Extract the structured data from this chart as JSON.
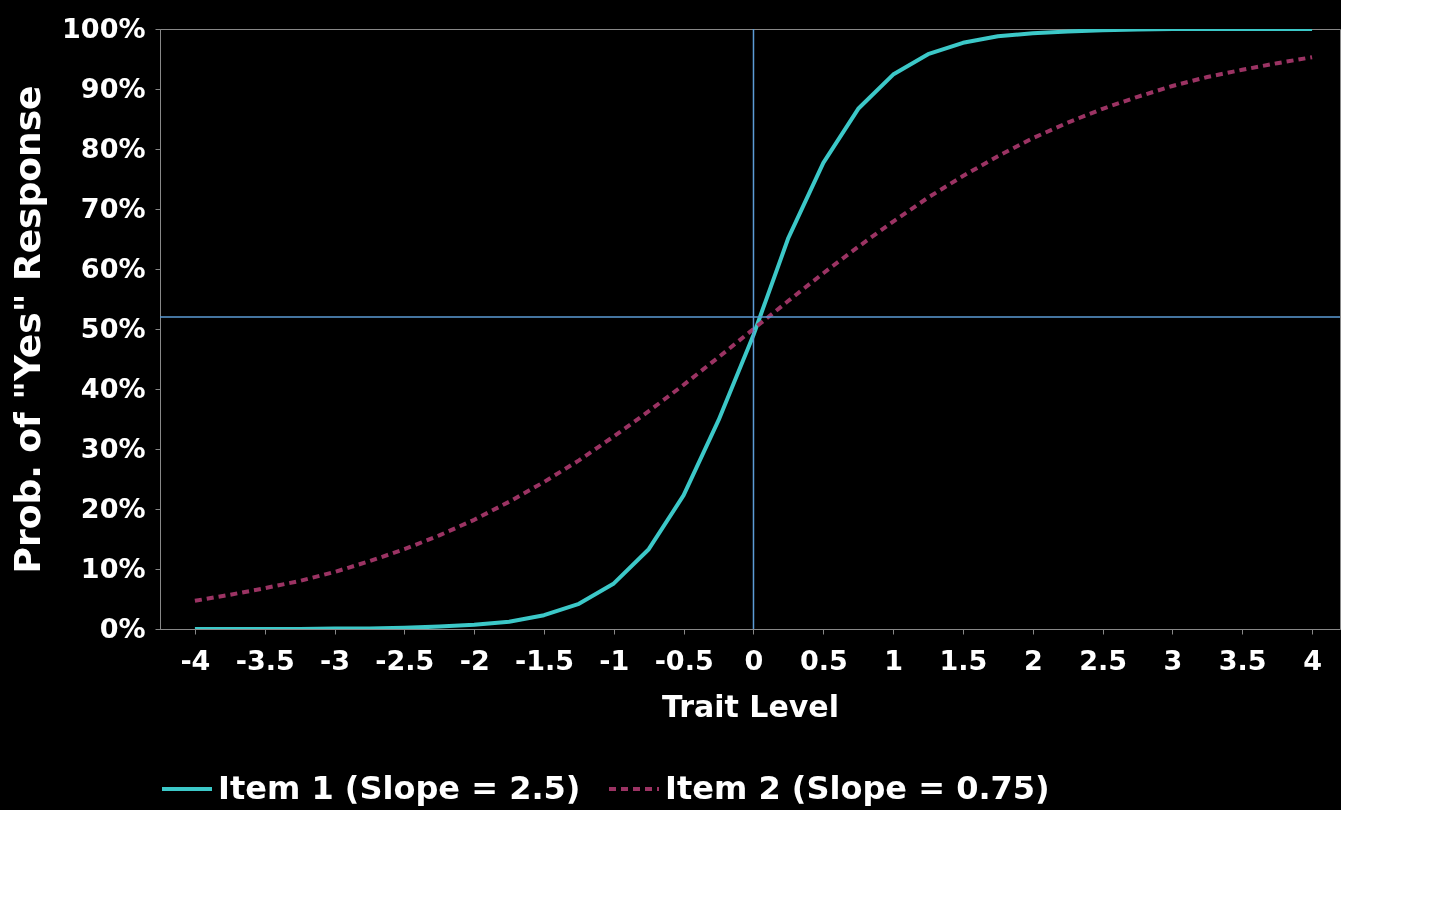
{
  "chart_data": {
    "type": "line",
    "xlabel": "Trait Level",
    "ylabel": "Prob. of \"Yes\" Response",
    "x": [
      -4,
      -3.75,
      -3.5,
      -3.25,
      -3,
      -2.75,
      -2.5,
      -2.25,
      -2,
      -1.75,
      -1.5,
      -1.25,
      -1,
      -0.75,
      -0.5,
      -0.25,
      0,
      0.25,
      0.5,
      0.75,
      1,
      1.25,
      1.5,
      1.75,
      2,
      2.25,
      2.5,
      2.75,
      3,
      3.25,
      3.5,
      3.75,
      4
    ],
    "series": [
      {
        "name": "Item 1 (Slope = 2.5)",
        "color": "#3cc8c8",
        "line_style": "solid",
        "values": [
          0,
          0,
          0,
          0,
          0.1,
          0.1,
          0.2,
          0.4,
          0.7,
          1.2,
          2.3,
          4.2,
          7.6,
          13.3,
          22.3,
          34.8,
          49,
          65.2,
          77.7,
          86.7,
          92.4,
          95.8,
          97.7,
          98.8,
          99.3,
          99.6,
          99.8,
          99.9,
          100,
          100,
          100,
          100,
          100
        ]
      },
      {
        "name": "Item 2 (Slope = 0.75)",
        "color": "#9b3363",
        "line_style": "dashed",
        "values": [
          4.7,
          5.7,
          6.8,
          8.0,
          9.5,
          11.3,
          13.3,
          15.6,
          18.2,
          21.2,
          24.5,
          28.1,
          32.1,
          36.3,
          40.7,
          45.3,
          50,
          54.7,
          59.3,
          63.7,
          67.9,
          71.9,
          75.5,
          78.8,
          81.8,
          84.4,
          86.7,
          88.7,
          90.5,
          92.0,
          93.2,
          94.3,
          95.3
        ]
      }
    ],
    "xlim": [
      -4.25,
      4.2
    ],
    "xticks": [
      -4,
      -3.5,
      -3,
      -2.5,
      -2,
      -1.5,
      -1,
      -0.5,
      0,
      0.5,
      1,
      1.5,
      2,
      2.5,
      3,
      3.5,
      4
    ],
    "ylim": [
      0,
      100
    ],
    "yticks": [
      {
        "value": 0,
        "label": "0%"
      },
      {
        "value": 10,
        "label": "10%"
      },
      {
        "value": 20,
        "label": "20%"
      },
      {
        "value": 30,
        "label": "30%"
      },
      {
        "value": 40,
        "label": "40%"
      },
      {
        "value": 50,
        "label": "50%"
      },
      {
        "value": 60,
        "label": "60%"
      },
      {
        "value": 70,
        "label": "70%"
      },
      {
        "value": 80,
        "label": "80%"
      },
      {
        "value": 90,
        "label": "90%"
      },
      {
        "value": 100,
        "label": "100%"
      }
    ],
    "ref_lines": [
      {
        "axis": "y",
        "value": 52,
        "color": "#5b9bd5"
      },
      {
        "axis": "x",
        "value": 0,
        "color": "#5b9bd5"
      }
    ],
    "grid": false,
    "legend": "bottom",
    "marker": "none"
  }
}
